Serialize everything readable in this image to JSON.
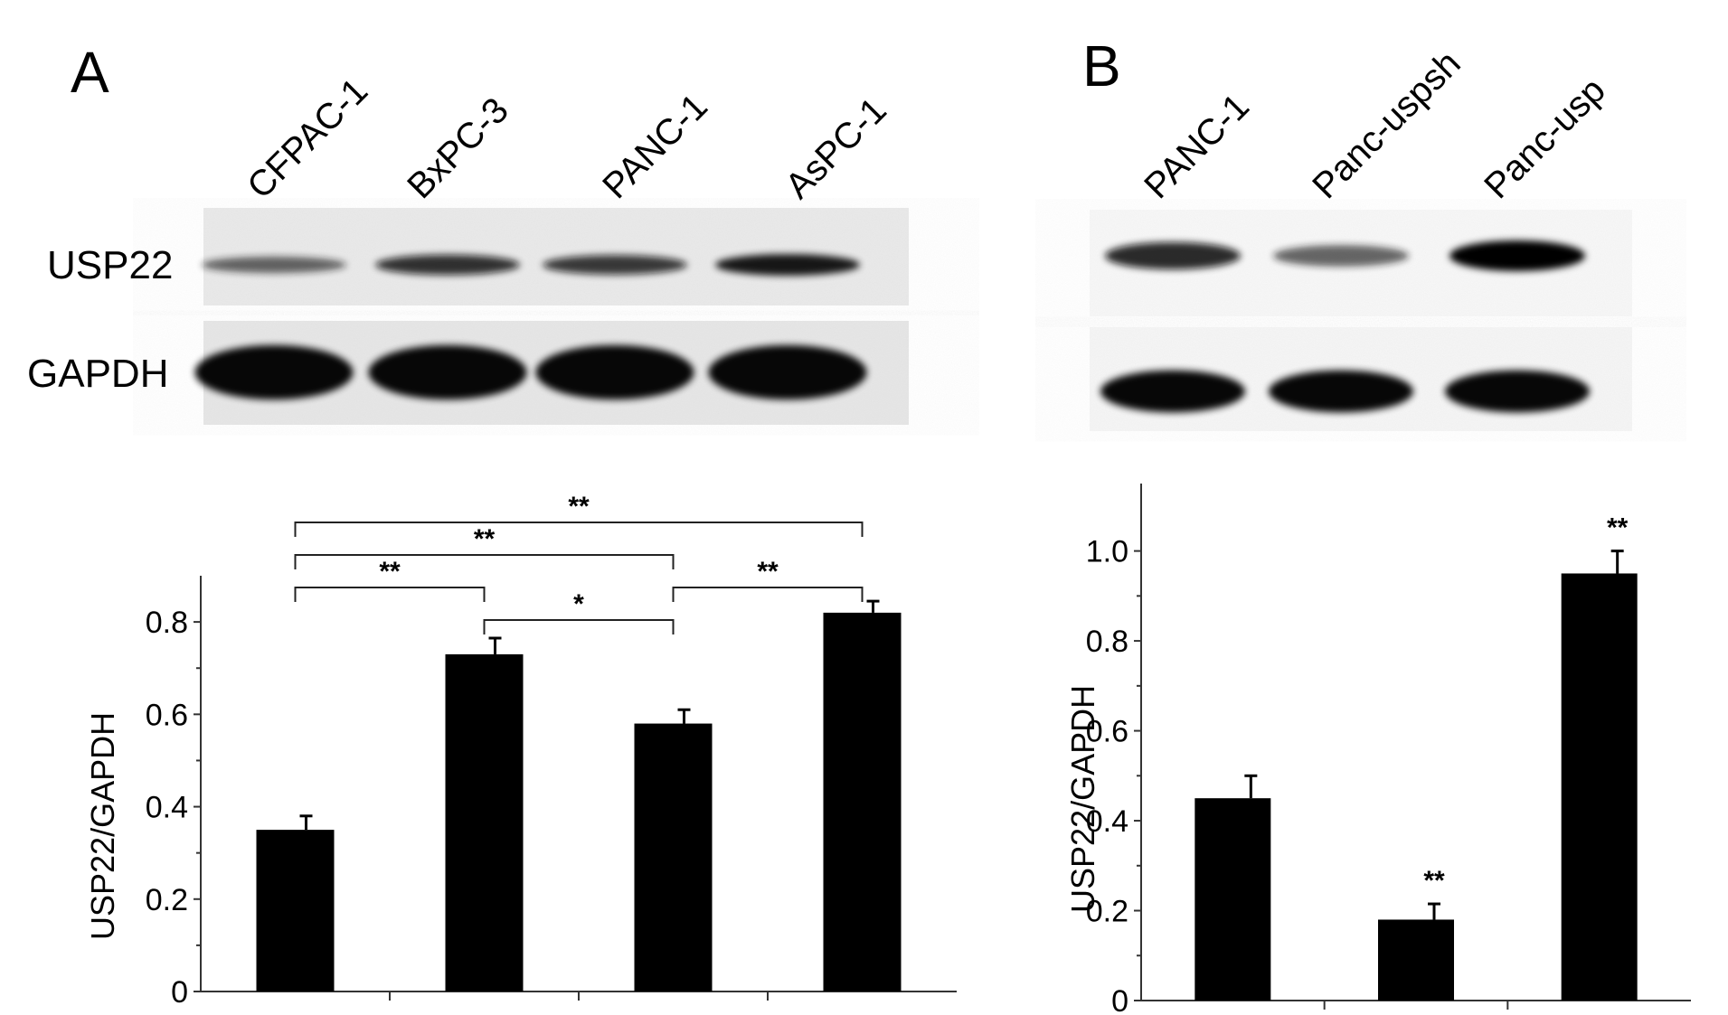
{
  "panels": [
    {
      "label": "A",
      "lanes": [
        "CFPAC-1",
        "BxPC-3",
        "PANC-1",
        "AsPC-1"
      ],
      "blot_rows": [
        "USP22",
        "GAPDH"
      ],
      "usp22_band_strength": [
        0.45,
        0.75,
        0.7,
        0.85
      ],
      "gapdh_band_strength": [
        0.95,
        0.95,
        0.95,
        0.95
      ]
    },
    {
      "label": "B",
      "lanes": [
        "PANC-1",
        "Panc-uspsh",
        "Panc-usp"
      ],
      "usp22_band_strength": [
        0.8,
        0.45,
        1.0
      ],
      "gapdh_band_strength": [
        0.95,
        0.95,
        0.95
      ]
    }
  ],
  "chart_data": [
    {
      "type": "bar",
      "panel": "A",
      "ylabel": "USP22/GAPDH",
      "ylim": [
        0,
        0.9
      ],
      "yticks": [
        "0",
        "0.2",
        "0.4",
        "0.6",
        "0.8"
      ],
      "values": [
        0.35,
        0.73,
        0.58,
        0.82
      ],
      "errors": [
        0.03,
        0.035,
        0.03,
        0.025
      ],
      "significance": [
        {
          "from": 0,
          "to": 1,
          "label": "**",
          "level": 1
        },
        {
          "from": 1,
          "to": 2,
          "label": "*",
          "level": 0
        },
        {
          "from": 2,
          "to": 3,
          "label": "**",
          "level": 1
        },
        {
          "from": 0,
          "to": 2,
          "label": "**",
          "level": 2
        },
        {
          "from": 0,
          "to": 3,
          "label": "**",
          "level": 3
        }
      ]
    },
    {
      "type": "bar",
      "panel": "B",
      "ylabel": "USP22/GAPDH",
      "ylim": [
        0,
        1.15
      ],
      "yticks": [
        "0",
        "0.2",
        "0.4",
        "0.6",
        "0.8",
        "1.0"
      ],
      "values": [
        0.45,
        0.18,
        0.95
      ],
      "errors": [
        0.05,
        0.035,
        0.05
      ],
      "bar_labels": [
        "",
        "**",
        "**"
      ]
    }
  ]
}
